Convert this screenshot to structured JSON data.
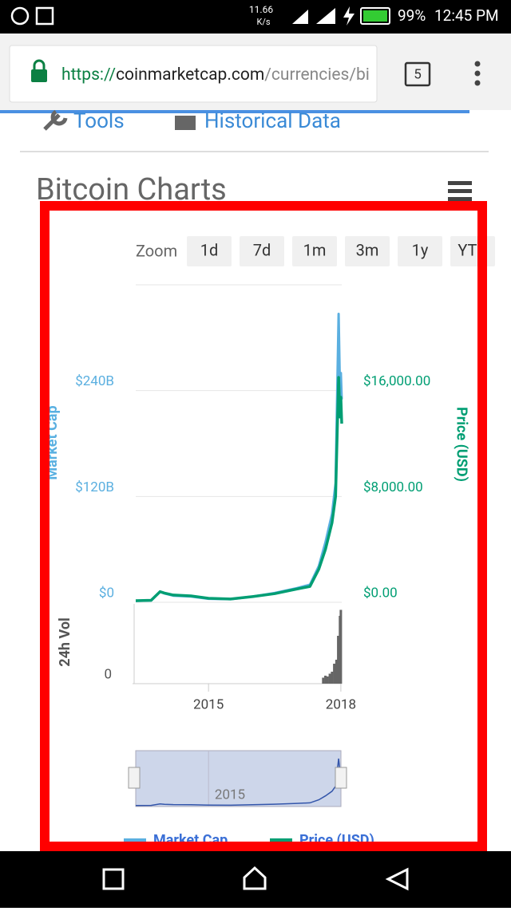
{
  "status_bar": {
    "speed": "11.66",
    "speed_unit": "K/s",
    "battery": "99%",
    "time": "12:45 PM"
  },
  "browser": {
    "scheme": "https://",
    "host": "coinmarketcap.com",
    "path": "/currencies/bi",
    "tabs": "5"
  },
  "nav": {
    "items": [
      "Tools",
      "Historical Data"
    ]
  },
  "section_title": "Bitcoin Charts",
  "chart_data": {
    "type": "line",
    "zoom_label": "Zoom",
    "zoom_options": [
      "1d",
      "7d",
      "1m",
      "3m",
      "1y",
      "YTD"
    ],
    "ylabel": "Market Cap",
    "y2label": "Price (USD)",
    "volume_label": "24h Vol",
    "xlim": [
      2013.35,
      2018.02
    ],
    "xticks": [
      2015,
      2018
    ],
    "ylim": [
      0,
      360000000000
    ],
    "yticks": [
      {
        "value": 0,
        "label": "$0"
      },
      {
        "value": 120000000000,
        "label": "$120B"
      },
      {
        "value": 240000000000,
        "label": "$240B"
      }
    ],
    "y2lim": [
      0,
      24000
    ],
    "y2ticks": [
      {
        "value": 0,
        "label": "$0.00"
      },
      {
        "value": 8000,
        "label": "$8,000.00"
      },
      {
        "value": 16000,
        "label": "$16,000.00"
      }
    ],
    "grid": true,
    "x": [
      2013.35,
      2013.7,
      2013.9,
      2014.0,
      2014.2,
      2014.6,
      2015.0,
      2015.5,
      2016.0,
      2016.5,
      2017.0,
      2017.3,
      2017.5,
      2017.65,
      2017.8,
      2017.88,
      2017.95,
      2017.98,
      2018.0,
      2018.02
    ],
    "series": [
      {
        "name": "Market Cap",
        "color": "#5aafe0",
        "values": [
          1500000000,
          2000000000,
          12000000000,
          10000000000,
          7500000000,
          6500000000,
          4000000000,
          3500000000,
          6500000000,
          10500000000,
          16000000000,
          20000000000,
          41000000000,
          68000000000,
          100000000000,
          135000000000,
          327000000000,
          240000000000,
          260000000000,
          230000000000
        ]
      },
      {
        "name": "Price (USD)",
        "color": "#009e73",
        "values": [
          120,
          150,
          800,
          700,
          550,
          480,
          300,
          250,
          430,
          650,
          1000,
          1200,
          2500,
          4000,
          6000,
          8000,
          17000,
          14000,
          15500,
          13500
        ]
      }
    ],
    "volume": {
      "x": [
        2017.6,
        2017.65,
        2017.7,
        2017.75,
        2017.8,
        2017.85,
        2017.9,
        2017.94,
        2017.98,
        2018.0
      ],
      "values": [
        1500000000,
        2000000000,
        1800000000,
        2500000000,
        3000000000,
        5000000000,
        6000000000,
        12000000000,
        17000000000,
        18500000000
      ],
      "ylim": [
        0,
        20000000000
      ],
      "yticks": [
        0
      ],
      "color": "#666666"
    },
    "navigator_label": "2015"
  }
}
